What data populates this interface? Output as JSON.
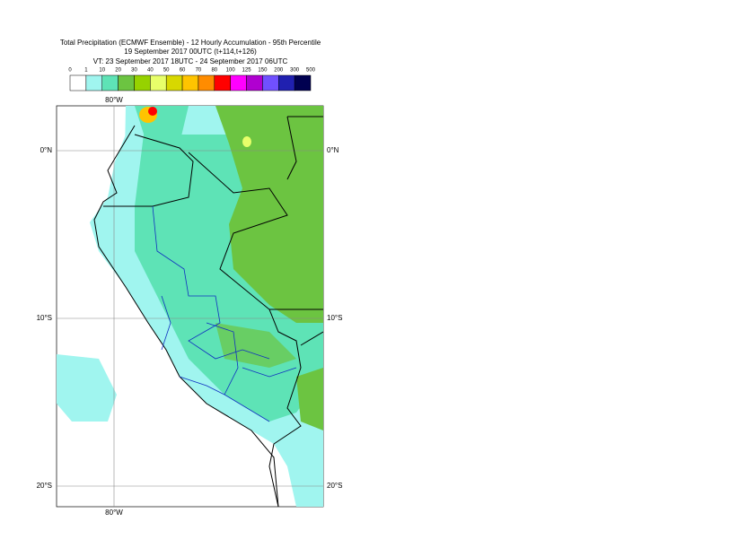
{
  "header": {
    "title": "Total Precipitation (ECMWF Ensemble) - 12 Hourly Accumulation - 95th Percentile",
    "base_time": "19 September 2017 00UTC (t+114,t+126)",
    "valid_time": "VT: 23 September 2017 18UTC - 24 September 2017 06UTC"
  },
  "legend": {
    "levels": [
      0,
      1,
      10,
      20,
      30,
      40,
      50,
      60,
      70,
      80,
      100,
      125,
      150,
      200,
      300,
      500
    ],
    "colors": [
      "#ffffff",
      "#a0f5ef",
      "#5ee3b6",
      "#6cc441",
      "#96d200",
      "#e8ff6a",
      "#d8d800",
      "#ffc400",
      "#ff8c00",
      "#ff0000",
      "#ff00ff",
      "#b000d0",
      "#7050ff",
      "#2020b0",
      "#000050"
    ]
  },
  "map": {
    "lon_labels": [
      "80°W"
    ],
    "lat_labels": [
      "0°N",
      "10°S",
      "20°S"
    ]
  }
}
